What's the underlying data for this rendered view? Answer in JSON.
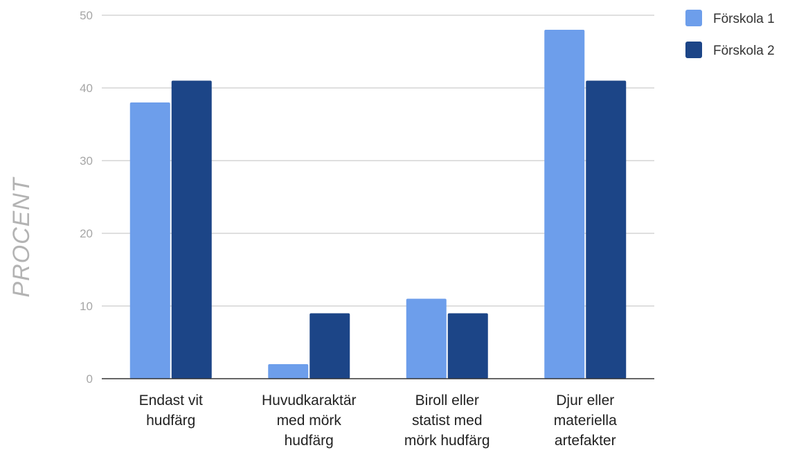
{
  "chart_data": {
    "type": "bar",
    "categories": [
      [
        "Endast vit",
        "hudfärg"
      ],
      [
        "Huvudkaraktär",
        "med mörk",
        "hudfärg"
      ],
      [
        "Biroll eller",
        "statist med",
        "mörk hudfärg"
      ],
      [
        "Djur eller",
        "materiella",
        "artefakter"
      ]
    ],
    "series": [
      {
        "name": "Förskola 1",
        "values": [
          38,
          2,
          11,
          48
        ],
        "color": "#6d9eeb"
      },
      {
        "name": "Förskola 2",
        "values": [
          41,
          9,
          9,
          41
        ],
        "color": "#1c4587"
      }
    ],
    "title": "",
    "xlabel": "",
    "ylabel": "PROCENT",
    "ylim": [
      0,
      50
    ],
    "yticks": [
      0,
      10,
      20,
      30,
      40,
      50
    ],
    "grid": true,
    "legend_position": "top-right"
  }
}
